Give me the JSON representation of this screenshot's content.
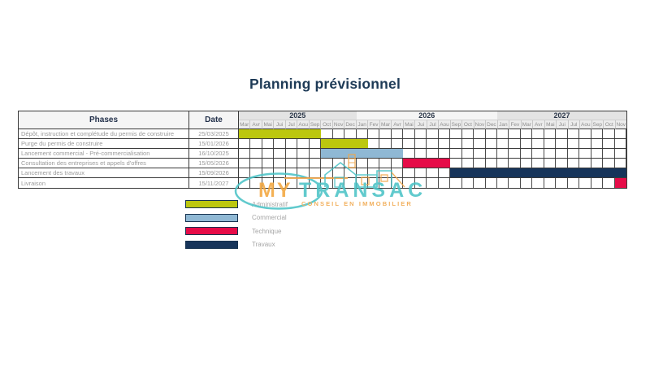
{
  "title": "Planning prévisionnel",
  "table": {
    "headers": {
      "phases": "Phases",
      "date": "Date"
    },
    "years": [
      {
        "label": "2025",
        "months": 10,
        "shade": "grey"
      },
      {
        "label": "2026",
        "months": 12,
        "shade": "light"
      },
      {
        "label": "2027",
        "months": 11,
        "shade": "grey"
      }
    ],
    "months": [
      "Mar",
      "Avr",
      "Mai",
      "Jui",
      "Jul",
      "Aou",
      "Sep",
      "Oct",
      "Nov",
      "Dec",
      "Jan",
      "Fev",
      "Mar",
      "Avr",
      "Mai",
      "Jui",
      "Jul",
      "Aou",
      "Sep",
      "Oct",
      "Nov",
      "Dec",
      "Jan",
      "Fev",
      "Mar",
      "Avr",
      "Mai",
      "Jui",
      "Jul",
      "Aou",
      "Sep",
      "Oct",
      "Nov"
    ],
    "rows": [
      {
        "phase": "Dépôt, instruction et complétude du permis de construire",
        "date": "25/03/2025",
        "bar": {
          "start": 0,
          "end": 7,
          "category": "administratif"
        }
      },
      {
        "phase": "Purge du permis de construire",
        "date": "15/01/2026",
        "bar": {
          "start": 7,
          "end": 11,
          "category": "administratif"
        }
      },
      {
        "phase": "Lancement commercial - Pré-commercialisation",
        "date": "16/10/2025",
        "bar": {
          "start": 7,
          "end": 14,
          "category": "commercial"
        }
      },
      {
        "phase": "Consultation des entreprises et appels d'offres",
        "date": "15/05/2026",
        "bar": {
          "start": 14,
          "end": 18,
          "category": "technique"
        }
      },
      {
        "phase": "Lancement des travaux",
        "date": "15/09/2026",
        "bar": {
          "start": 18,
          "end": 33,
          "category": "travaux"
        }
      },
      {
        "phase": "Livraison",
        "date": "15/11/2027",
        "bar": {
          "start": 32,
          "end": 33,
          "category": "technique"
        }
      }
    ]
  },
  "legend": [
    {
      "label": "Administratif",
      "color": "#bcc70e"
    },
    {
      "label": "Commercial",
      "color": "#8fb8d4"
    },
    {
      "label": "Technique",
      "color": "#e60c48"
    },
    {
      "label": "Travaux",
      "color": "#16345a"
    }
  ],
  "colors": {
    "administratif": "#bcc70e",
    "commercial": "#8fb8d4",
    "technique": "#e60c48",
    "travaux": "#16345a",
    "title": "#1d3a56",
    "teal": "#4cc3c7",
    "orange": "#f0a649"
  },
  "watermark": {
    "brand_my": "MY",
    "brand_transac": "TRANSAC",
    "tagline": "CONSEIL EN IMMOBILIER"
  },
  "chart_data": {
    "type": "bar",
    "subtype": "gantt",
    "title": "Planning prévisionnel",
    "timeline": {
      "start": "2025-03",
      "end": "2027-11",
      "unit": "month",
      "total_months": 33
    },
    "categories": [
      "Administratif",
      "Commercial",
      "Technique",
      "Travaux"
    ],
    "category_colors": [
      "#bcc70e",
      "#8fb8d4",
      "#e60c48",
      "#16345a"
    ],
    "tasks": [
      {
        "phase": "Dépôt, instruction et complétude du permis de construire",
        "date": "25/03/2025",
        "start": "2025-03",
        "end": "2025-09",
        "category": "Administratif"
      },
      {
        "phase": "Purge du permis de construire",
        "date": "15/01/2026",
        "start": "2025-10",
        "end": "2026-01",
        "category": "Administratif"
      },
      {
        "phase": "Lancement commercial - Pré-commercialisation",
        "date": "16/10/2025",
        "start": "2025-10",
        "end": "2026-04",
        "category": "Commercial"
      },
      {
        "phase": "Consultation des entreprises et appels d'offres",
        "date": "15/05/2026",
        "start": "2026-05",
        "end": "2026-08",
        "category": "Technique"
      },
      {
        "phase": "Lancement des travaux",
        "date": "15/09/2026",
        "start": "2026-09",
        "end": "2027-11",
        "category": "Travaux"
      },
      {
        "phase": "Livraison",
        "date": "15/11/2027",
        "start": "2027-11",
        "end": "2027-11",
        "category": "Technique"
      }
    ],
    "grid": true,
    "legend_position": "bottom-left"
  }
}
